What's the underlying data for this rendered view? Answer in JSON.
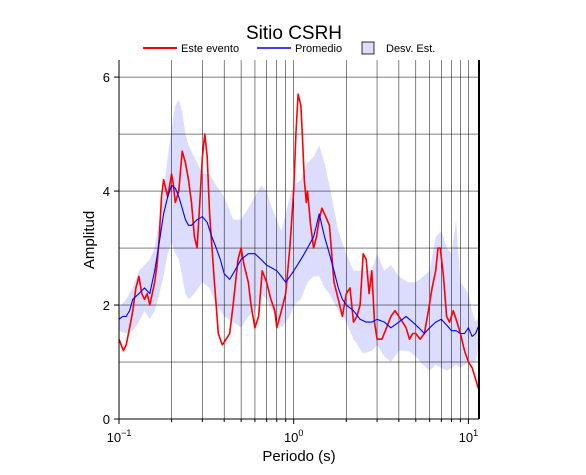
{
  "chart_data": {
    "type": "line",
    "title": "Sitio CSRH",
    "xlabel": "Periodo (s)",
    "ylabel": "Amplitud",
    "xscale": "log",
    "xlim": [
      0.1,
      11.5
    ],
    "ylim": [
      0,
      6.3
    ],
    "grid": true,
    "legend_placement": "top",
    "x_ticks": [
      {
        "value": 0.1,
        "base": "10",
        "exp": "−1"
      },
      {
        "value": 1,
        "base": "10",
        "exp": "0"
      },
      {
        "value": 10,
        "base": "10",
        "exp": "1"
      }
    ],
    "y_ticks": [
      0,
      2,
      4,
      6
    ],
    "legend": {
      "este_evento": "Este evento",
      "promedio": "Promedio",
      "desv_est": "Desv. Est."
    },
    "colors": {
      "este_evento": "#ff0000",
      "promedio": "#0000ff",
      "desv_est": "#dcdcff",
      "grid": "#000000"
    },
    "series": [
      {
        "name": "Este evento",
        "color": "#ff0000",
        "x": [
          0.1,
          0.103,
          0.106,
          0.11,
          0.115,
          0.12,
          0.125,
          0.13,
          0.135,
          0.14,
          0.145,
          0.15,
          0.16,
          0.165,
          0.17,
          0.175,
          0.18,
          0.19,
          0.2,
          0.205,
          0.21,
          0.22,
          0.23,
          0.24,
          0.25,
          0.26,
          0.27,
          0.28,
          0.29,
          0.3,
          0.31,
          0.32,
          0.33,
          0.35,
          0.37,
          0.39,
          0.41,
          0.43,
          0.45,
          0.48,
          0.5,
          0.52,
          0.55,
          0.57,
          0.6,
          0.63,
          0.66,
          0.7,
          0.74,
          0.78,
          0.8,
          0.85,
          0.9,
          0.95,
          1.0,
          1.03,
          1.06,
          1.08,
          1.1,
          1.12,
          1.15,
          1.18,
          1.2,
          1.25,
          1.3,
          1.35,
          1.4,
          1.45,
          1.5,
          1.6,
          1.7,
          1.8,
          1.9,
          2.0,
          2.1,
          2.2,
          2.3,
          2.4,
          2.5,
          2.6,
          2.7,
          2.8,
          2.9,
          3.0,
          3.2,
          3.4,
          3.6,
          3.8,
          4.0,
          4.2,
          4.4,
          4.6,
          4.8,
          5.0,
          5.3,
          5.6,
          5.9,
          6.2,
          6.5,
          6.7,
          6.9,
          7.2,
          7.5,
          7.8,
          8.2,
          8.6,
          9.0,
          9.5,
          10.0,
          10.5,
          11.0,
          11.5
        ],
        "y": [
          1.4,
          1.3,
          1.2,
          1.3,
          1.6,
          1.9,
          2.3,
          2.5,
          2.2,
          2.1,
          2.2,
          2.0,
          2.4,
          2.7,
          3.2,
          3.9,
          4.2,
          3.9,
          4.3,
          4.1,
          3.8,
          4.0,
          4.7,
          4.5,
          4.2,
          3.8,
          3.2,
          3.0,
          3.8,
          4.6,
          5.0,
          4.6,
          3.6,
          2.5,
          1.5,
          1.3,
          1.4,
          1.5,
          2.0,
          2.8,
          3.0,
          2.7,
          2.4,
          2.0,
          1.6,
          1.8,
          2.6,
          2.4,
          2.1,
          1.9,
          1.6,
          1.9,
          2.2,
          3.0,
          4.0,
          5.0,
          5.7,
          5.6,
          5.5,
          5.0,
          4.2,
          3.8,
          4.0,
          3.4,
          3.0,
          3.2,
          3.5,
          3.7,
          3.6,
          3.4,
          2.4,
          2.1,
          1.8,
          2.2,
          2.3,
          1.7,
          1.8,
          2.0,
          2.9,
          2.8,
          2.2,
          2.6,
          1.7,
          1.4,
          1.4,
          1.6,
          1.8,
          1.9,
          1.8,
          1.7,
          1.6,
          1.4,
          1.5,
          1.5,
          1.4,
          1.5,
          1.9,
          2.3,
          2.6,
          3.0,
          3.0,
          2.5,
          1.8,
          1.7,
          1.9,
          1.7,
          1.5,
          1.2,
          1.0,
          0.9,
          0.7,
          0.5
        ]
      },
      {
        "name": "Promedio",
        "color": "#0000ff",
        "x": [
          0.1,
          0.105,
          0.11,
          0.115,
          0.12,
          0.13,
          0.14,
          0.15,
          0.16,
          0.17,
          0.18,
          0.19,
          0.2,
          0.21,
          0.22,
          0.23,
          0.24,
          0.25,
          0.26,
          0.27,
          0.28,
          0.3,
          0.32,
          0.34,
          0.36,
          0.38,
          0.4,
          0.43,
          0.46,
          0.5,
          0.55,
          0.6,
          0.65,
          0.7,
          0.75,
          0.8,
          0.85,
          0.9,
          0.95,
          1.0,
          1.05,
          1.1,
          1.15,
          1.2,
          1.25,
          1.3,
          1.35,
          1.4,
          1.5,
          1.6,
          1.7,
          1.8,
          1.9,
          2.0,
          2.2,
          2.4,
          2.6,
          2.8,
          3.0,
          3.3,
          3.6,
          4.0,
          4.4,
          4.8,
          5.2,
          5.6,
          6.0,
          6.5,
          7.0,
          7.5,
          8.0,
          8.5,
          9.0,
          9.5,
          10.0,
          10.5,
          11.0,
          11.5
        ],
        "y": [
          1.75,
          1.8,
          1.8,
          1.9,
          2.1,
          2.2,
          2.3,
          2.2,
          2.6,
          3.1,
          3.6,
          3.9,
          4.1,
          4.05,
          3.9,
          3.7,
          3.5,
          3.4,
          3.4,
          3.45,
          3.5,
          3.55,
          3.45,
          3.2,
          3.0,
          2.8,
          2.55,
          2.45,
          2.6,
          2.8,
          2.9,
          2.9,
          2.8,
          2.7,
          2.65,
          2.6,
          2.5,
          2.4,
          2.5,
          2.6,
          2.7,
          2.8,
          2.9,
          3.0,
          3.1,
          3.2,
          3.4,
          3.6,
          3.2,
          2.9,
          2.6,
          2.3,
          2.1,
          2.0,
          1.9,
          1.75,
          1.7,
          1.7,
          1.75,
          1.7,
          1.6,
          1.7,
          1.8,
          1.7,
          1.6,
          1.5,
          1.6,
          1.7,
          1.75,
          1.65,
          1.55,
          1.55,
          1.5,
          1.5,
          1.6,
          1.45,
          1.5,
          1.65
        ]
      }
    ],
    "band": {
      "name": "Desv. Est.",
      "color": "#dcdcff",
      "x": [
        0.1,
        0.11,
        0.12,
        0.13,
        0.14,
        0.15,
        0.16,
        0.17,
        0.18,
        0.19,
        0.2,
        0.21,
        0.22,
        0.23,
        0.24,
        0.25,
        0.27,
        0.3,
        0.33,
        0.36,
        0.4,
        0.45,
        0.5,
        0.55,
        0.6,
        0.65,
        0.7,
        0.75,
        0.8,
        0.85,
        0.9,
        0.95,
        1.0,
        1.1,
        1.2,
        1.3,
        1.4,
        1.5,
        1.6,
        1.8,
        2.0,
        2.2,
        2.5,
        2.8,
        3.0,
        3.3,
        3.6,
        4.0,
        4.5,
        5.0,
        5.5,
        6.0,
        6.5,
        7.0,
        7.5,
        8.0,
        8.5,
        9.0,
        9.5,
        10.0,
        10.5,
        11.0,
        11.5
      ],
      "lower": [
        1.55,
        1.5,
        1.55,
        1.7,
        1.9,
        1.75,
        1.9,
        2.2,
        2.5,
        2.9,
        3.1,
        2.9,
        2.8,
        2.5,
        2.2,
        2.1,
        2.2,
        2.4,
        2.3,
        2.0,
        1.8,
        1.7,
        1.6,
        1.8,
        1.9,
        2.2,
        2.1,
        1.9,
        1.8,
        1.6,
        1.7,
        1.8,
        2.0,
        2.1,
        2.4,
        2.5,
        2.5,
        2.3,
        2.2,
        1.9,
        1.7,
        1.4,
        1.15,
        1.2,
        1.3,
        1.1,
        1.0,
        1.2,
        1.2,
        1.1,
        0.95,
        0.85,
        0.95,
        0.9,
        0.85,
        0.9,
        0.95,
        0.9,
        0.95,
        1.0,
        1.0,
        1.0,
        1.3
      ],
      "upper": [
        1.95,
        2.1,
        2.3,
        2.6,
        2.7,
        2.8,
        3.0,
        3.5,
        4.0,
        4.6,
        5.1,
        5.5,
        5.6,
        5.4,
        5.0,
        4.8,
        4.6,
        4.3,
        4.3,
        4.1,
        3.9,
        3.5,
        3.5,
        3.7,
        3.9,
        4.1,
        4.0,
        3.7,
        3.5,
        3.3,
        3.6,
        3.9,
        4.1,
        4.2,
        4.5,
        4.6,
        4.8,
        4.5,
        4.1,
        3.3,
        2.9,
        2.6,
        2.6,
        2.6,
        2.9,
        2.6,
        2.7,
        2.5,
        2.4,
        2.4,
        2.5,
        2.6,
        3.2,
        3.3,
        3.0,
        2.9,
        3.5,
        2.4,
        2.3,
        2.2,
        1.9,
        1.7,
        1.8
      ]
    }
  }
}
